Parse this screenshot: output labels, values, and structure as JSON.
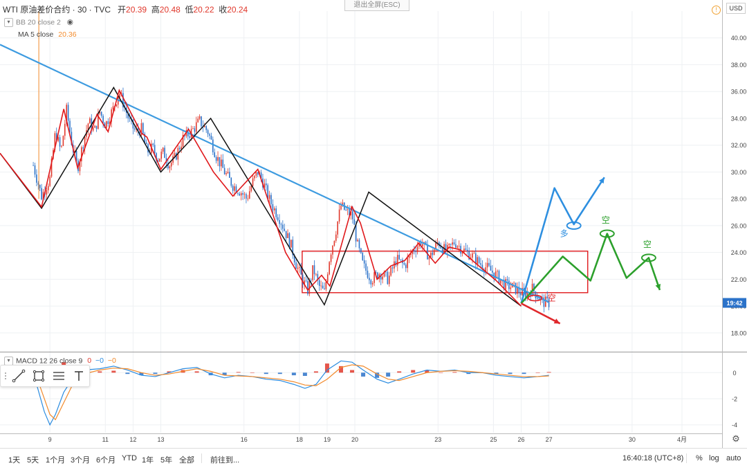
{
  "header": {
    "symbol": "WTI 原油差价合约 · 30 · TVC",
    "open_label": "开",
    "open": "20.39",
    "high_label": "高",
    "high": "20.48",
    "low_label": "低",
    "low": "20.22",
    "close_label": "收",
    "close": "20.24"
  },
  "indicators": {
    "bb": "BB 20 close 2",
    "ma_label": "MA 5 close",
    "ma_value": "20.36",
    "macd_label": "MACD 12 26 close 9",
    "macd_v1": "0",
    "macd_v2": "−0",
    "macd_v3": "−0"
  },
  "exit_fullscreen": "退出全屏(ESC)",
  "currency": "USD",
  "alert_icon": "!",
  "price_tag": "19:42",
  "annotations": {
    "long": "多",
    "short1": "空",
    "short2": "空",
    "short3": "空"
  },
  "bottom": {
    "ranges": [
      "1天",
      "5天",
      "1个月",
      "3个月",
      "6个月",
      "YTD",
      "1年",
      "5年",
      "全部"
    ],
    "goto": "前往到...",
    "clock": "16:40:18 (UTC+8)",
    "percent": "%",
    "log": "log",
    "auto": "auto"
  },
  "colors": {
    "up": "#e0382c",
    "down": "#2b72c9",
    "trendline": "#3d9be0",
    "zigzag_red": "#e0181b",
    "zigzag_black": "#111111",
    "arrow_blue": "#2e8fe0",
    "arrow_green": "#2ca02c",
    "arrow_red": "#e0282c",
    "macd_line": "#2b8ce0",
    "signal_line": "#f28a2b"
  },
  "chart_data": {
    "type": "line",
    "price_axis": {
      "min": 16.6,
      "max": 42.0,
      "ticks": [
        18,
        20,
        22,
        24,
        26,
        28,
        30,
        32,
        34,
        36,
        38,
        40
      ]
    },
    "time_axis": {
      "ticks": [
        {
          "label": "9",
          "t": 9
        },
        {
          "label": "11",
          "t": 11
        },
        {
          "label": "12",
          "t": 12
        },
        {
          "label": "13",
          "t": 13
        },
        {
          "label": "16",
          "t": 16
        },
        {
          "label": "18",
          "t": 18
        },
        {
          "label": "19",
          "t": 19
        },
        {
          "label": "20",
          "t": 20
        },
        {
          "label": "23",
          "t": 23
        },
        {
          "label": "25",
          "t": 25
        },
        {
          "label": "26",
          "t": 26
        },
        {
          "label": "27",
          "t": 27
        },
        {
          "label": "30",
          "t": 30
        },
        {
          "label": "4月",
          "t": 31.8
        }
      ]
    },
    "price_path": [
      [
        8.4,
        30.5
      ],
      [
        8.7,
        28.2
      ],
      [
        9.0,
        29.5
      ],
      [
        9.2,
        33.0
      ],
      [
        9.4,
        31.5
      ],
      [
        9.6,
        34.6
      ],
      [
        9.8,
        32.0
      ],
      [
        10.0,
        30.3
      ],
      [
        10.2,
        32.2
      ],
      [
        10.4,
        33.8
      ],
      [
        10.6,
        33.0
      ],
      [
        10.8,
        34.5
      ],
      [
        11.0,
        33.5
      ],
      [
        11.3,
        34.8
      ],
      [
        11.5,
        36.0
      ],
      [
        11.7,
        34.8
      ],
      [
        11.9,
        33.6
      ],
      [
        12.1,
        33.0
      ],
      [
        12.3,
        33.2
      ],
      [
        12.5,
        31.5
      ],
      [
        12.7,
        31.8
      ],
      [
        12.9,
        31.0
      ],
      [
        13.1,
        31.5
      ],
      [
        13.3,
        30.5
      ],
      [
        13.5,
        31.0
      ],
      [
        13.8,
        32.5
      ],
      [
        14.1,
        33.0
      ],
      [
        14.4,
        33.8
      ],
      [
        14.7,
        33.0
      ],
      [
        15.0,
        31.2
      ],
      [
        15.3,
        30.0
      ],
      [
        15.6,
        29.0
      ],
      [
        15.9,
        28.5
      ],
      [
        16.1,
        28.0
      ],
      [
        16.3,
        29.2
      ],
      [
        16.5,
        30.0
      ],
      [
        16.7,
        29.2
      ],
      [
        16.9,
        28.0
      ],
      [
        17.1,
        27.2
      ],
      [
        17.3,
        26.5
      ],
      [
        17.5,
        25.5
      ],
      [
        17.7,
        24.5
      ],
      [
        17.9,
        23.0
      ],
      [
        18.1,
        22.0
      ],
      [
        18.3,
        21.2
      ],
      [
        18.5,
        22.8
      ],
      [
        18.7,
        21.5
      ],
      [
        18.9,
        21.0
      ],
      [
        19.1,
        23.8
      ],
      [
        19.3,
        25.5
      ],
      [
        19.5,
        27.5
      ],
      [
        19.7,
        27.0
      ],
      [
        19.9,
        26.8
      ],
      [
        20.1,
        24.5
      ],
      [
        20.3,
        23.0
      ],
      [
        20.6,
        22.0
      ],
      [
        20.9,
        22.5
      ],
      [
        21.2,
        22.0
      ],
      [
        21.5,
        23.5
      ],
      [
        21.8,
        23.0
      ],
      [
        22.1,
        24.2
      ],
      [
        22.4,
        24.8
      ],
      [
        22.7,
        23.6
      ],
      [
        23.0,
        24.8
      ],
      [
        23.3,
        24.0
      ],
      [
        23.6,
        24.8
      ],
      [
        23.9,
        24.2
      ],
      [
        24.2,
        23.8
      ],
      [
        24.5,
        23.2
      ],
      [
        24.8,
        22.8
      ],
      [
        25.1,
        22.3
      ],
      [
        25.4,
        21.6
      ],
      [
        25.7,
        21.4
      ],
      [
        26.0,
        21.0
      ],
      [
        26.2,
        20.9
      ],
      [
        26.4,
        21.3
      ],
      [
        26.6,
        20.7
      ],
      [
        26.8,
        20.3
      ],
      [
        27.0,
        20.24
      ]
    ],
    "trendline": [
      [
        7.2,
        39.5
      ],
      [
        27.0,
        20.3
      ]
    ],
    "support_box": {
      "t0": 18.1,
      "t1": 28.4,
      "y0": 21.0,
      "y1": 24.1
    },
    "zigzag_black": [
      [
        7.2,
        31.4
      ],
      [
        8.7,
        27.3
      ],
      [
        11.3,
        36.3
      ],
      [
        13.0,
        30.0
      ],
      [
        14.8,
        34.0
      ],
      [
        18.9,
        20.1
      ],
      [
        20.5,
        28.5
      ],
      [
        26.0,
        20.0
      ]
    ],
    "zigzag_red": [
      [
        7.2,
        31.4
      ],
      [
        8.7,
        27.4
      ],
      [
        9.5,
        34.7
      ],
      [
        10.0,
        30.3
      ],
      [
        10.7,
        34.3
      ],
      [
        11.1,
        33.0
      ],
      [
        11.5,
        36.1
      ],
      [
        12.3,
        32.9
      ],
      [
        12.5,
        32.6
      ],
      [
        13.0,
        30.2
      ],
      [
        14.0,
        33.2
      ],
      [
        14.9,
        30.0
      ],
      [
        15.6,
        28.2
      ],
      [
        16.5,
        30.2
      ],
      [
        17.5,
        24.0
      ],
      [
        18.3,
        21.2
      ],
      [
        18.8,
        22.3
      ],
      [
        19.1,
        21.5
      ],
      [
        19.9,
        27.4
      ],
      [
        20.2,
        26.2
      ],
      [
        20.8,
        22.0
      ],
      [
        21.3,
        23.0
      ],
      [
        21.8,
        23.4
      ],
      [
        22.3,
        24.7
      ],
      [
        22.9,
        23.2
      ],
      [
        23.4,
        24.4
      ],
      [
        23.8,
        24.2
      ],
      [
        24.3,
        23.3
      ],
      [
        25.1,
        21.9
      ],
      [
        26.0,
        20.0
      ]
    ],
    "scenario_blue": [
      [
        26.0,
        20.2
      ],
      [
        27.2,
        28.8
      ],
      [
        27.9,
        26.1
      ],
      [
        29.0,
        29.6
      ]
    ],
    "scenario_green": [
      [
        26.0,
        20.2
      ],
      [
        27.5,
        23.7
      ],
      [
        28.5,
        21.9
      ],
      [
        29.1,
        25.4
      ],
      [
        29.8,
        22.1
      ],
      [
        30.6,
        23.6
      ],
      [
        31.0,
        21.2
      ]
    ],
    "scenario_red": [
      [
        26.0,
        20.2
      ],
      [
        27.4,
        18.7
      ]
    ],
    "macd_axis": {
      "min": -4.6,
      "max": 1.5,
      "ticks": [
        0,
        -2,
        -4
      ]
    },
    "macd_line": [
      [
        8.4,
        0.0
      ],
      [
        8.6,
        -1.5
      ],
      [
        8.8,
        -3.0
      ],
      [
        9.0,
        -4.0
      ],
      [
        9.2,
        -3.2
      ],
      [
        9.5,
        -1.5
      ],
      [
        9.8,
        -0.5
      ],
      [
        10.2,
        0.2
      ],
      [
        10.8,
        0.3
      ],
      [
        11.3,
        0.5
      ],
      [
        11.8,
        0.2
      ],
      [
        12.3,
        -0.2
      ],
      [
        12.8,
        -0.3
      ],
      [
        13.3,
        0.0
      ],
      [
        13.8,
        0.3
      ],
      [
        14.3,
        0.4
      ],
      [
        14.8,
        -0.1
      ],
      [
        15.3,
        -0.4
      ],
      [
        15.8,
        -0.2
      ],
      [
        16.3,
        -0.3
      ],
      [
        16.8,
        -0.5
      ],
      [
        17.3,
        -0.6
      ],
      [
        17.8,
        -0.9
      ],
      [
        18.2,
        -1.2
      ],
      [
        18.6,
        -0.9
      ],
      [
        19.0,
        0.2
      ],
      [
        19.5,
        0.9
      ],
      [
        19.9,
        0.8
      ],
      [
        20.3,
        0.2
      ],
      [
        20.8,
        -0.5
      ],
      [
        21.2,
        -0.8
      ],
      [
        21.6,
        -0.5
      ],
      [
        22.1,
        -0.1
      ],
      [
        22.6,
        0.2
      ],
      [
        23.1,
        0.1
      ],
      [
        23.6,
        0.2
      ],
      [
        24.1,
        0.0
      ],
      [
        24.6,
        0.0
      ],
      [
        25.1,
        -0.2
      ],
      [
        25.6,
        -0.3
      ],
      [
        26.1,
        -0.4
      ],
      [
        26.6,
        -0.3
      ],
      [
        27.0,
        -0.2
      ]
    ],
    "signal_line": [
      [
        8.4,
        0.0
      ],
      [
        8.6,
        -0.8
      ],
      [
        8.8,
        -2.0
      ],
      [
        9.0,
        -3.2
      ],
      [
        9.2,
        -3.6
      ],
      [
        9.5,
        -2.3
      ],
      [
        9.8,
        -1.0
      ],
      [
        10.2,
        -0.1
      ],
      [
        10.8,
        0.2
      ],
      [
        11.3,
        0.35
      ],
      [
        11.8,
        0.3
      ],
      [
        12.3,
        0.0
      ],
      [
        12.8,
        -0.2
      ],
      [
        13.3,
        -0.1
      ],
      [
        13.8,
        0.1
      ],
      [
        14.3,
        0.3
      ],
      [
        14.8,
        0.1
      ],
      [
        15.3,
        -0.2
      ],
      [
        15.8,
        -0.25
      ],
      [
        16.3,
        -0.3
      ],
      [
        16.8,
        -0.4
      ],
      [
        17.3,
        -0.5
      ],
      [
        17.8,
        -0.7
      ],
      [
        18.2,
        -0.95
      ],
      [
        18.6,
        -1.0
      ],
      [
        19.0,
        -0.5
      ],
      [
        19.5,
        0.4
      ],
      [
        19.9,
        0.6
      ],
      [
        20.3,
        0.5
      ],
      [
        20.8,
        -0.1
      ],
      [
        21.2,
        -0.5
      ],
      [
        21.6,
        -0.6
      ],
      [
        22.1,
        -0.3
      ],
      [
        22.6,
        0.0
      ],
      [
        23.1,
        0.1
      ],
      [
        23.6,
        0.15
      ],
      [
        24.1,
        0.1
      ],
      [
        24.6,
        0.0
      ],
      [
        25.1,
        -0.1
      ],
      [
        25.6,
        -0.2
      ],
      [
        26.1,
        -0.3
      ],
      [
        26.6,
        -0.3
      ],
      [
        27.0,
        -0.25
      ]
    ]
  }
}
